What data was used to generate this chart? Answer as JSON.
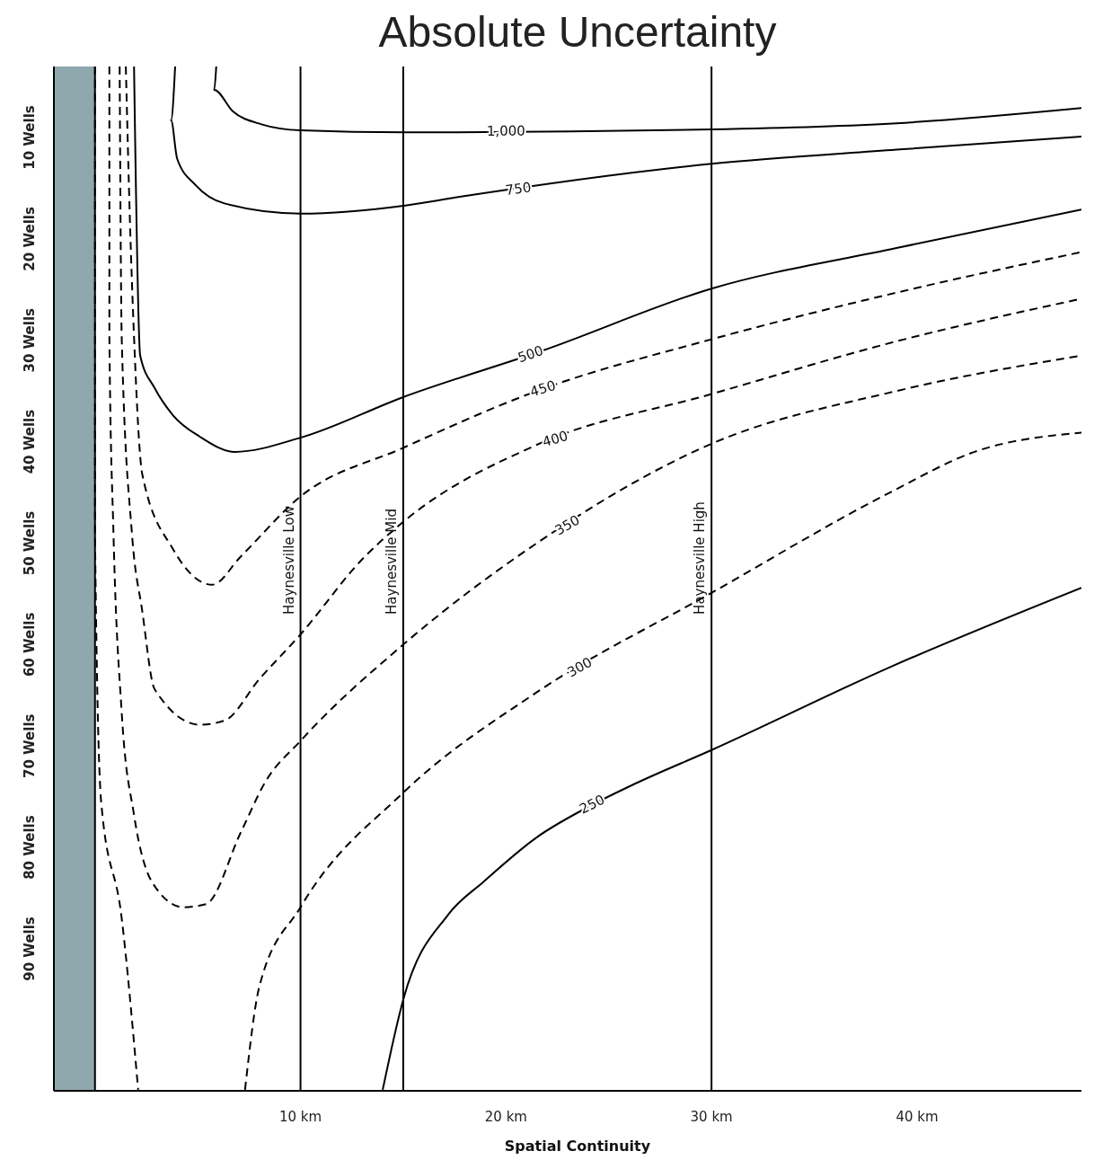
{
  "chart_data": {
    "type": "line",
    "title": "Absolute Uncertainty",
    "xlabel": "Spatial Continuity",
    "xlim": [
      -2,
      48
    ],
    "xticks": [
      {
        "value": 10,
        "label": "10 km"
      },
      {
        "value": 20,
        "label": "20 km"
      },
      {
        "value": 30,
        "label": "30 km"
      },
      {
        "value": 40,
        "label": "40 km"
      }
    ],
    "ylim": [
      104,
      3
    ],
    "yticks": [
      {
        "value": 10,
        "label": "10 Wells"
      },
      {
        "value": 20,
        "label": "20 Wells"
      },
      {
        "value": 30,
        "label": "30 Wells"
      },
      {
        "value": 40,
        "label": "40 Wells"
      },
      {
        "value": 50,
        "label": "50 Wells"
      },
      {
        "value": 60,
        "label": "60 Wells"
      },
      {
        "value": 70,
        "label": "70 Wells"
      },
      {
        "value": 80,
        "label": "80 Wells"
      },
      {
        "value": 90,
        "label": "90 Wells"
      }
    ],
    "marker": "none",
    "series": [
      {
        "name": "1,000",
        "color": "#000000",
        "line_style": "solid",
        "x": [
          5.9,
          5.8,
          6.7,
          8.1,
          10.0,
          15.1,
          30.0,
          39.0,
          48.0
        ],
        "values": [
          3.0,
          5.3,
          7.4,
          8.7,
          9.3,
          9.5,
          9.2,
          8.6,
          7.1
        ]
      },
      {
        "name": "750",
        "color": "#000000",
        "line_style": "solid",
        "x": [
          3.9,
          3.7,
          4.0,
          4.9,
          6.3,
          10.0,
          15.1,
          17.6,
          30.0,
          39.0,
          48.0
        ],
        "values": [
          3.0,
          8.3,
          12.1,
          14.7,
          16.5,
          17.5,
          16.7,
          15.9,
          12.6,
          11.2,
          9.9
        ]
      },
      {
        "name": "500",
        "color": "#000000",
        "line_style": "solid",
        "x": [
          1.9,
          2.2,
          2.9,
          3.8,
          5.1,
          6.8,
          10.0,
          15.0,
          21.8,
          30.0,
          39.0,
          48.0
        ],
        "values": [
          3.0,
          31.5,
          34.7,
          37.4,
          39.5,
          41.0,
          39.6,
          35.6,
          31.0,
          24.9,
          20.9,
          17.1
        ]
      },
      {
        "name": "450",
        "color": "#000000",
        "line_style": "dashed",
        "x": [
          1.5,
          1.7,
          1.9,
          2.3,
          3.8,
          5.7,
          7.1,
          10.0,
          15.0,
          21.5,
          30.0,
          39.0,
          48.0
        ],
        "values": [
          3.0,
          18.2,
          29.7,
          43.2,
          50.6,
          54.1,
          51.3,
          45.4,
          40.6,
          35.0,
          29.9,
          25.3,
          21.3
        ]
      },
      {
        "name": "400",
        "color": "#000000",
        "line_style": "dashed",
        "x": [
          1.2,
          1.3,
          1.8,
          2.3,
          2.9,
          5.1,
          6.3,
          8.0,
          10.0,
          13.0,
          15.0,
          21.5,
          30.0,
          39.0,
          48.0
        ],
        "values": [
          3.0,
          29.7,
          49.1,
          56.7,
          64.4,
          67.9,
          67.5,
          63.4,
          59.0,
          51.6,
          47.9,
          40.3,
          35.3,
          30.1,
          25.9
        ]
      },
      {
        "name": "350",
        "color": "#000000",
        "line_style": "dashed",
        "x": [
          0.7,
          0.7,
          0.9,
          1.3,
          1.9,
          2.8,
          4.3,
          5.4,
          7.1,
          8.3,
          10.0,
          15.0,
          21.5,
          30.0,
          39.0,
          48.0
        ],
        "values": [
          3.0,
          29.7,
          49.1,
          66.7,
          76.8,
          83.5,
          85.9,
          85.6,
          78.5,
          73.5,
          69.5,
          60.0,
          50.0,
          40.2,
          35.0,
          31.5
        ]
      },
      {
        "name": "300",
        "color": "#000000",
        "line_style": "dashed",
        "x": [
          0.0,
          0.0,
          0.3,
          1.3,
          2.1,
          4.7,
          7.3,
          8.0,
          10.0,
          15.0,
          21.5,
          30.0,
          38.6,
          42.8,
          48.0
        ],
        "values": [
          3.0,
          49.1,
          75.5,
          87.0,
          103.9,
          null,
          103.9,
          93.7,
          85.9,
          74.6,
          64.7,
          54.9,
          45.1,
          41.0,
          39.1
        ]
      },
      {
        "name": "250",
        "color": "#000000",
        "line_style": "solid",
        "x": [
          14.0,
          15.0,
          17.2,
          18.9,
          21.5,
          24.2,
          26.3,
          30.0,
          38.6,
          48.0
        ],
        "values": [
          103.9,
          95.0,
          86.6,
          83.4,
          79.0,
          75.8,
          73.7,
          70.4,
          62.3,
          54.4
        ]
      }
    ],
    "bands": [
      {
        "axis": "x",
        "from": -2,
        "to": 0,
        "color": "#8fa8ad"
      }
    ],
    "ref_lines": [
      {
        "axis": "x",
        "value": 0,
        "label": null
      },
      {
        "axis": "x",
        "value": 10,
        "label": "Haynesville Low"
      },
      {
        "axis": "x",
        "value": 15,
        "label": "Haynesville Mid"
      },
      {
        "axis": "x",
        "value": 30,
        "label": "Haynesville High"
      }
    ]
  }
}
